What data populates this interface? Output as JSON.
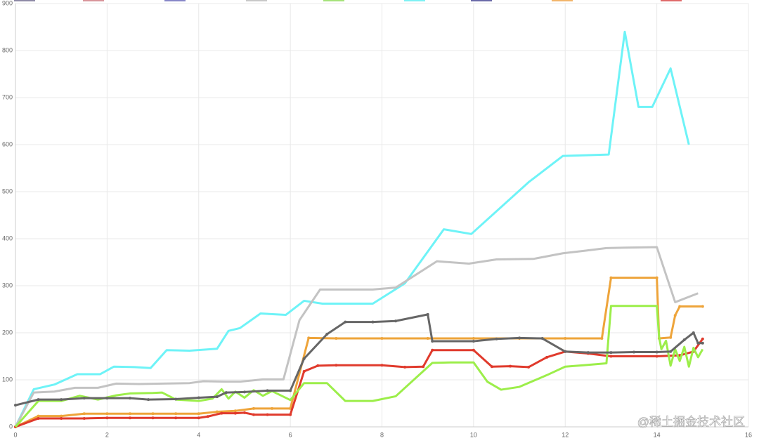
{
  "chart_data": {
    "type": "line",
    "xlim": [
      0,
      16
    ],
    "xticks": [
      0,
      2,
      4,
      6,
      8,
      10,
      12,
      14,
      16
    ],
    "ylim": [
      0,
      900
    ],
    "yticks": [
      0,
      100,
      200,
      300,
      400,
      500,
      600,
      700,
      800,
      900
    ],
    "grid": true,
    "legend_colors": [
      "#8e8aa6",
      "#d9959b",
      "#8787c8",
      "#c8c8c8",
      "#a5e27a",
      "#7ef1f4",
      "#6a6aa8",
      "#f2b56a",
      "#e06a6a"
    ],
    "watermark": "@稀土掘金技术社区",
    "series": [
      {
        "color": "#6ef3f7",
        "markers": false,
        "x": [
          0,
          0.4,
          0.85,
          1.35,
          1.85,
          2.15,
          2.6,
          2.95,
          3.3,
          3.8,
          4.4,
          4.65,
          4.9,
          5.35,
          5.9,
          6.3,
          6.7,
          7.3,
          7.8,
          8.5,
          9.35,
          9.95,
          11.2,
          11.95,
          12.95,
          13.3,
          13.6,
          13.9,
          14.3,
          14.7
        ],
        "values": [
          0,
          80,
          90,
          112,
          112,
          128,
          127,
          125,
          163,
          162,
          166,
          204,
          210,
          241,
          238,
          268,
          262,
          262,
          262,
          305,
          420,
          410,
          520,
          576,
          579,
          840,
          680,
          680,
          762,
          600
        ]
      },
      {
        "color": "#c3c3c3",
        "markers": false,
        "x": [
          0,
          0.4,
          0.85,
          1.3,
          1.8,
          2.2,
          2.7,
          3.2,
          3.8,
          4.1,
          4.6,
          4.9,
          5.4,
          5.85,
          6.2,
          6.65,
          7.3,
          7.8,
          8.3,
          9.2,
          9.9,
          10.5,
          11.3,
          11.95,
          12.4,
          12.9,
          13.3,
          14.0,
          14.4,
          14.9
        ],
        "values": [
          0,
          73,
          75,
          83,
          83,
          92,
          91,
          92,
          93,
          97,
          96,
          96,
          101,
          101,
          227,
          292,
          292,
          292,
          296,
          352,
          347,
          356,
          357,
          369,
          374,
          380,
          381,
          382,
          265,
          284
        ]
      },
      {
        "color": "#eea43a",
        "markers": true,
        "x": [
          0,
          0.5,
          1,
          1.5,
          2,
          2.5,
          3,
          3.5,
          4,
          4.4,
          4.8,
          5.2,
          5.6,
          6,
          6.4,
          7,
          8,
          9,
          10,
          11,
          12,
          12.8,
          13.0,
          14.0,
          14.05,
          14.3,
          14.4,
          14.5,
          15.0
        ],
        "values": [
          0,
          23,
          23,
          28,
          28,
          28,
          28,
          28,
          28,
          32,
          34,
          39,
          39,
          39,
          189,
          188,
          188,
          188,
          188,
          188,
          188,
          188,
          317,
          317,
          188,
          190,
          237,
          256,
          256
        ]
      },
      {
        "color": "#e03a2c",
        "markers": true,
        "x": [
          0,
          0.5,
          1,
          1.5,
          2,
          2.5,
          3,
          3.5,
          4,
          4.2,
          4.5,
          4.8,
          5.0,
          5.2,
          5.5,
          6,
          6.3,
          6.6,
          7,
          8,
          8.5,
          8.9,
          9.1,
          10,
          10.4,
          10.8,
          11.2,
          11.6,
          12.0,
          12.5,
          13,
          14,
          14.5,
          14.8,
          15
        ],
        "values": [
          0,
          18,
          18,
          18,
          19,
          19,
          19,
          19,
          19,
          22,
          29,
          29,
          30,
          26,
          26,
          26,
          118,
          130,
          131,
          131,
          127,
          128,
          163,
          163,
          128,
          129,
          127,
          148,
          160,
          156,
          150,
          150,
          152,
          160,
          187
        ]
      },
      {
        "color": "#9cee4a",
        "markers": false,
        "x": [
          0,
          0.5,
          1,
          1.4,
          1.8,
          2.2,
          2.5,
          3,
          3.2,
          3.5,
          4,
          4.3,
          4.5,
          4.65,
          4.8,
          5,
          5.2,
          5.4,
          5.6,
          6.0,
          6.3,
          6.8,
          7.2,
          7.8,
          8.3,
          9.1,
          9.5,
          10.0,
          10.3,
          10.6,
          11,
          11.6,
          12,
          12.4,
          12.9,
          13,
          13.5,
          14.0,
          14.05,
          14.1,
          14.2,
          14.3,
          14.4,
          14.5,
          14.6,
          14.7,
          14.8,
          14.9,
          15
        ],
        "values": [
          0,
          55,
          55,
          66,
          58,
          67,
          71,
          72,
          73,
          58,
          55,
          60,
          80,
          60,
          75,
          62,
          78,
          66,
          76,
          57,
          93,
          93,
          55,
          55,
          65,
          136,
          137,
          137,
          96,
          79,
          85,
          110,
          128,
          131,
          135,
          257,
          257,
          257,
          190,
          165,
          183,
          130,
          165,
          140,
          170,
          128,
          168,
          148,
          165
        ]
      },
      {
        "color": "#666666",
        "markers": true,
        "x": [
          0,
          0.5,
          1,
          1.5,
          2,
          2.5,
          2.9,
          3.5,
          4,
          4.4,
          4.6,
          5,
          5.5,
          6,
          6.3,
          6.8,
          7.2,
          7.8,
          8.3,
          9.0,
          9.1,
          10,
          10.5,
          11,
          11.5,
          12,
          12.5,
          13,
          13.5,
          14,
          14.3,
          14.6,
          14.8,
          14.9,
          15
        ],
        "values": [
          46,
          58,
          58,
          61,
          61,
          61,
          58,
          59,
          62,
          64,
          73,
          74,
          77,
          77,
          145,
          197,
          223,
          223,
          225,
          239,
          182,
          182,
          187,
          189,
          188,
          160,
          158,
          158,
          159,
          159,
          160,
          185,
          200,
          178,
          178
        ]
      }
    ]
  }
}
